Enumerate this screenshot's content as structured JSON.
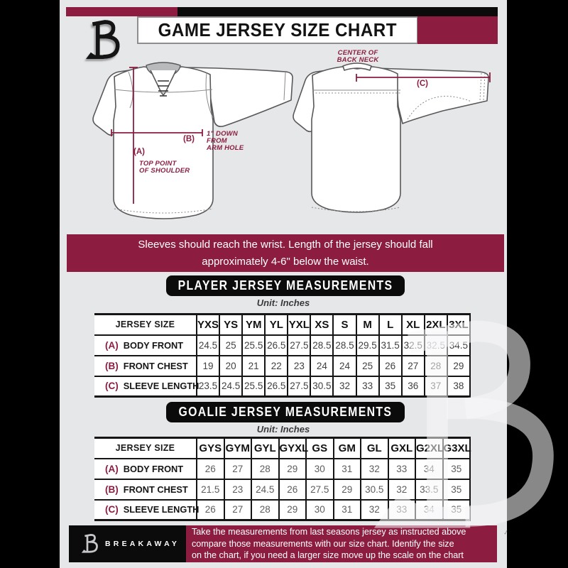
{
  "colors": {
    "accent": "#8C1D40",
    "background": "#E6E7E8",
    "bar_black": "#0B0B0B"
  },
  "header": {
    "title": "GAME JERSEY SIZE CHART"
  },
  "diagram": {
    "front": {
      "a_key": "(A)",
      "a_note": "TOP POINT\nOF SHOULDER",
      "b_key": "(B)",
      "b_note": "1\" DOWN\nFROM\nARM HOLE"
    },
    "back": {
      "c_key": "(C)",
      "neck_note": "CENTER OF\nBACK NECK"
    }
  },
  "notice_banner": "Sleeves should reach the wrist. Length of the jersey should fall\napproximately 4-6\" below the waist.",
  "player": {
    "title": "PLAYER JERSEY MEASUREMENTS",
    "unit": "Unit: Inches",
    "table": {
      "corner": "JERSEY SIZE",
      "columns": [
        "YXS",
        "YS",
        "YM",
        "YL",
        "YXL",
        "XS",
        "S",
        "M",
        "L",
        "XL",
        "2XL",
        "3XL"
      ],
      "rows": [
        {
          "key": "(A)",
          "label": "BODY FRONT",
          "values": [
            "24.5",
            "25",
            "25.5",
            "26.5",
            "27.5",
            "28.5",
            "28.5",
            "29.5",
            "31.5",
            "32.5",
            "32.5",
            "34.5"
          ]
        },
        {
          "key": "(B)",
          "label": "FRONT CHEST",
          "values": [
            "19",
            "20",
            "21",
            "22",
            "23",
            "24",
            "24",
            "25",
            "26",
            "27",
            "28",
            "29"
          ]
        },
        {
          "key": "(C)",
          "label": "SLEEVE LENGTH",
          "values": [
            "23.5",
            "24.5",
            "25.5",
            "26.5",
            "27.5",
            "30.5",
            "32",
            "33",
            "35",
            "36",
            "37",
            "38"
          ]
        }
      ]
    }
  },
  "goalie": {
    "title": "GOALIE JERSEY MEASUREMENTS",
    "unit": "Unit: Inches",
    "table": {
      "corner": "JERSEY SIZE",
      "columns": [
        "GYS",
        "GYM",
        "GYL",
        "GYXL",
        "GS",
        "GM",
        "GL",
        "GXL",
        "G2XL",
        "G3XL"
      ],
      "rows": [
        {
          "key": "(A)",
          "label": "BODY FRONT",
          "values": [
            "26",
            "27",
            "28",
            "29",
            "30",
            "31",
            "32",
            "33",
            "34",
            "35"
          ]
        },
        {
          "key": "(B)",
          "label": "FRONT CHEST",
          "values": [
            "21.5",
            "23",
            "24.5",
            "26",
            "27.5",
            "29",
            "30.5",
            "32",
            "33.5",
            "35"
          ]
        },
        {
          "key": "(C)",
          "label": "SLEEVE LENGTH",
          "values": [
            "26",
            "27",
            "28",
            "29",
            "30",
            "31",
            "32",
            "33",
            "34",
            "35"
          ]
        }
      ]
    }
  },
  "footer": {
    "brand": "BREAKAWAY",
    "note": "Take the measurements from last seasons jersey as instructed above\ncompare those measurements  with our size chart. Identify the size\non the chart, if you need a larger size move up the scale on the chart"
  }
}
